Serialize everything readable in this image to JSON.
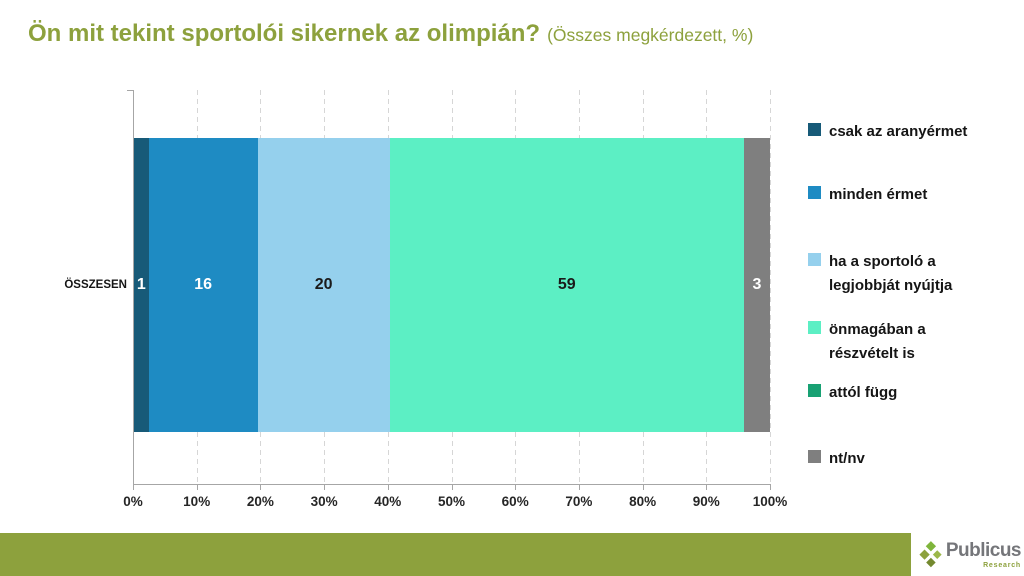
{
  "title": {
    "text": "Ön mit tekint sportolói sikernek az olimpián?",
    "subtitle": "(Összes megkérdezett, %)"
  },
  "colors": {
    "accent_olive": "#8da13d",
    "axis_line": "#a6a6a6",
    "gridline": "#d6d6d6",
    "tick_text": "#262626",
    "legend_text": "#151515",
    "brand_text_gray": "#75767a"
  },
  "chart_data": {
    "type": "bar",
    "variant": "horizontal-stacked",
    "title": "Ön mit tekint sportolói sikernek az olimpián?",
    "subtitle": "(Összes megkérdezett, %)",
    "categories": [
      "ÖSSZESEN"
    ],
    "series": [
      {
        "name": "csak az aranyérmet",
        "values": [
          1
        ],
        "color": "#175a78",
        "label_color": "#ffffff"
      },
      {
        "name": "minden érmet",
        "values": [
          16
        ],
        "color": "#1e8bc3",
        "label_color": "#ffffff"
      },
      {
        "name": "ha a sportoló a legjobbját nyújtja",
        "values": [
          20
        ],
        "color": "#95d0ed",
        "label_color": "#1a1a1a"
      },
      {
        "name": "önmagában a részvételt is",
        "values": [
          59
        ],
        "color": "#5cefc4",
        "label_color": "#1a1a1a"
      },
      {
        "name": "attól függ",
        "values": [
          0
        ],
        "color": "#18a173",
        "label_color": "#ffffff"
      },
      {
        "name": "nt/nv",
        "values": [
          3
        ],
        "color": "#7f7f7f",
        "label_color": "#ffffff"
      }
    ],
    "xticks": [
      "0%",
      "10%",
      "20%",
      "30%",
      "40%",
      "50%",
      "60%",
      "70%",
      "80%",
      "90%",
      "100%"
    ],
    "xlim": [
      0,
      100
    ],
    "grid": "vertical-dashed",
    "legend_position": "right"
  },
  "footer": {
    "brand": "Publicus",
    "brand_sub": "Research"
  }
}
